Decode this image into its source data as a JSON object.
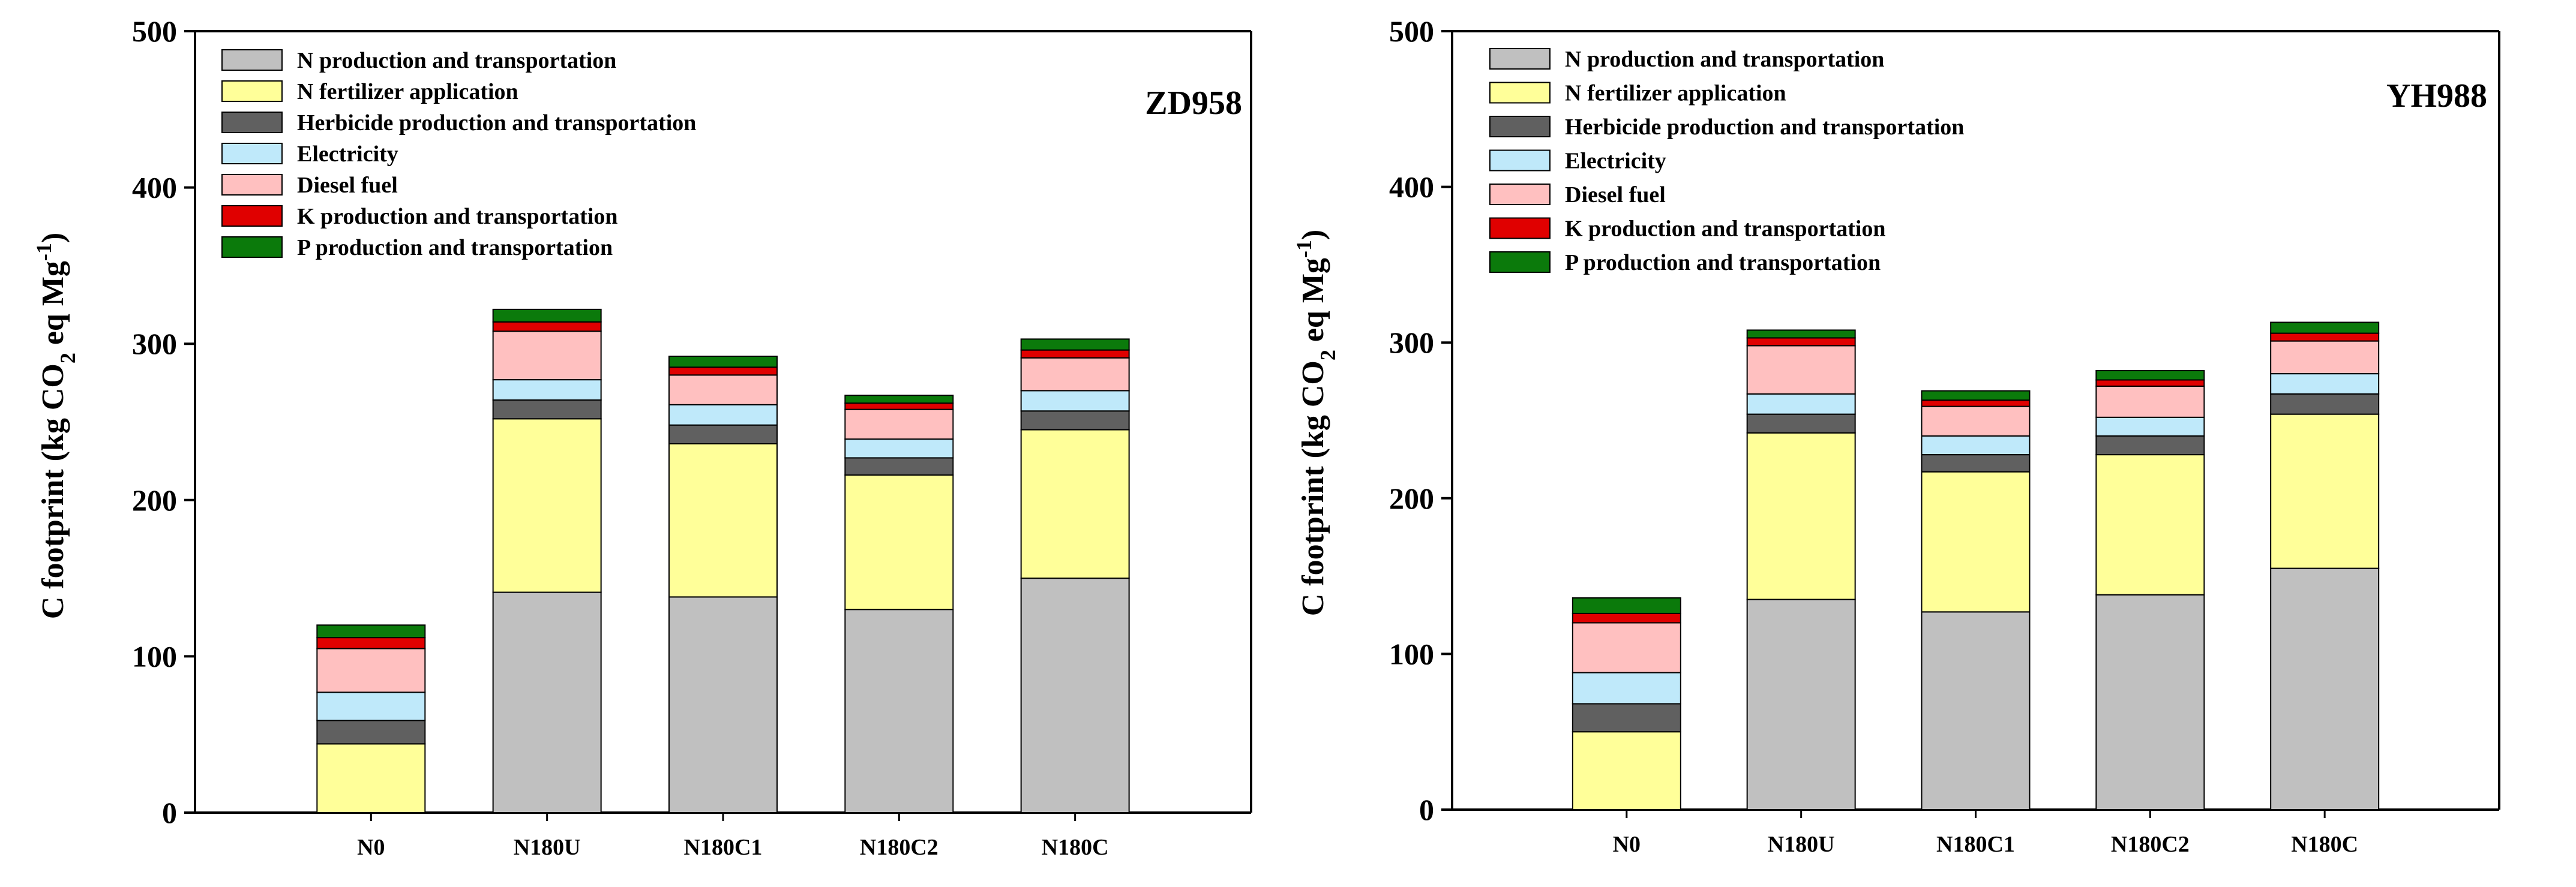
{
  "series_colors": {
    "N production and transportation": "#c0c0c0",
    "N fertilizer application": "#ffff99",
    "Herbicide production and transportation": "#606060",
    "Electricity": "#bfe9fa",
    "Diesel fuel": "#ffc0c0",
    "K production and transportation": "#e00000",
    "P production and transportation": "#0b7a0b"
  },
  "chart_data": [
    {
      "type": "bar",
      "stacked": true,
      "title": "ZD958",
      "xlabel": "",
      "ylabel": "C footprint (kg CO2 eq Mg-1)",
      "ylim": [
        0,
        500
      ],
      "yticks": [
        0,
        100,
        200,
        300,
        400,
        500
      ],
      "legend_position": "top-left",
      "categories": [
        "N0",
        "N180U",
        "N180C1",
        "N180C2",
        "N180C"
      ],
      "series": [
        {
          "name": "N production and transportation",
          "values": [
            0,
            141,
            138,
            130,
            150
          ]
        },
        {
          "name": "N fertilizer application",
          "values": [
            44,
            111,
            98,
            86,
            95
          ]
        },
        {
          "name": "Herbicide production and transportation",
          "values": [
            15,
            12,
            12,
            11,
            12
          ]
        },
        {
          "name": "Electricity",
          "values": [
            18,
            13,
            13,
            12,
            13
          ]
        },
        {
          "name": "Diesel fuel",
          "values": [
            28,
            31,
            19,
            19,
            21
          ]
        },
        {
          "name": "K production and transportation",
          "values": [
            7,
            6,
            5,
            4,
            5
          ]
        },
        {
          "name": "P production and transportation",
          "values": [
            8,
            8,
            7,
            5,
            7
          ]
        }
      ]
    },
    {
      "type": "bar",
      "stacked": true,
      "title": "YH988",
      "xlabel": "",
      "ylabel": "C footprint (kg CO2 eq Mg-1)",
      "ylim": [
        0,
        500
      ],
      "yticks": [
        0,
        100,
        200,
        300,
        400,
        500
      ],
      "legend_position": "top-left",
      "categories": [
        "N0",
        "N180U",
        "N180C1",
        "N180C2",
        "N180C"
      ],
      "series": [
        {
          "name": "N production and transportation",
          "values": [
            0,
            135,
            127,
            138,
            155
          ]
        },
        {
          "name": "N fertilizer application",
          "values": [
            50,
            107,
            90,
            90,
            99
          ]
        },
        {
          "name": "Herbicide production and transportation",
          "values": [
            18,
            12,
            11,
            12,
            13
          ]
        },
        {
          "name": "Electricity",
          "values": [
            20,
            13,
            12,
            12,
            13
          ]
        },
        {
          "name": "Diesel fuel",
          "values": [
            32,
            31,
            19,
            20,
            21
          ]
        },
        {
          "name": "K production and transportation",
          "values": [
            6,
            5,
            4,
            4,
            5
          ]
        },
        {
          "name": "P production and transportation",
          "values": [
            10,
            5,
            6,
            6,
            7
          ]
        }
      ]
    }
  ]
}
